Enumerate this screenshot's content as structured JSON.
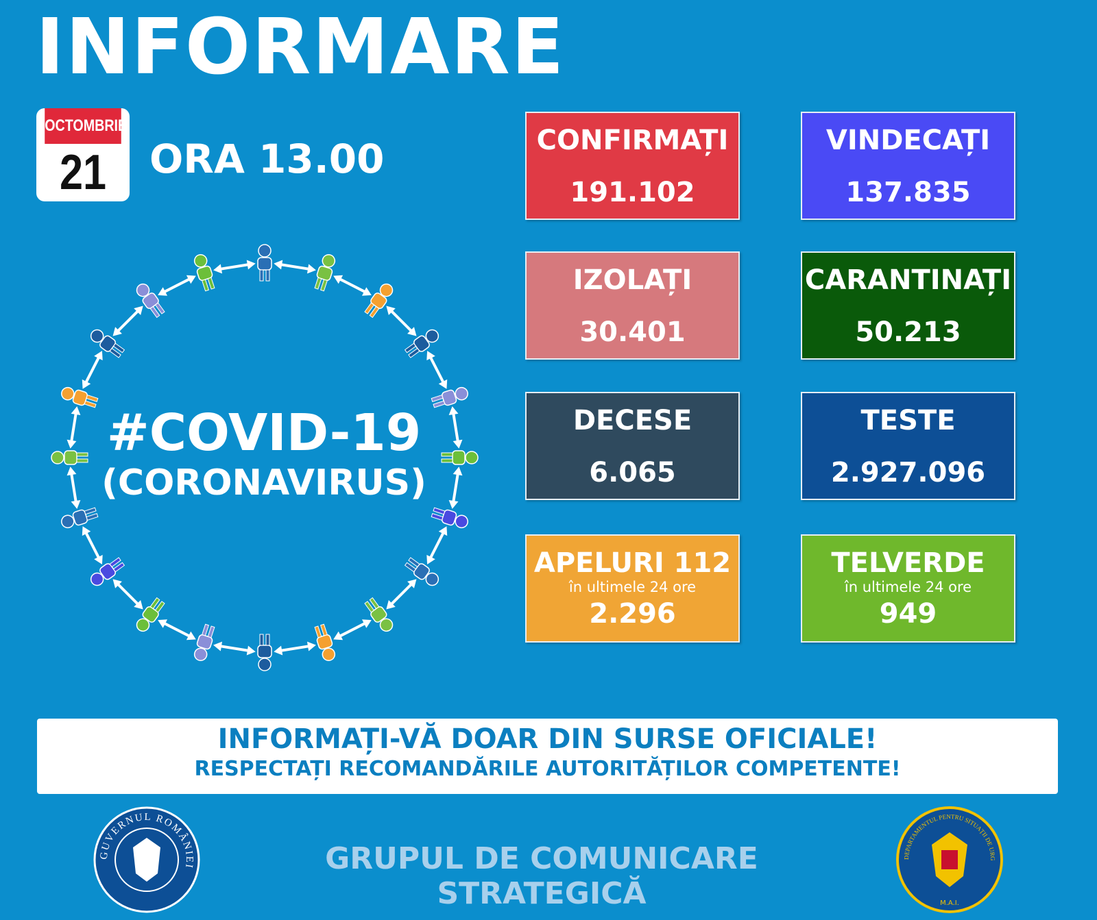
{
  "header": {
    "title": "INFORMARE",
    "month": "OCTOMBRIE",
    "day": "21",
    "time": "ORA 13.00"
  },
  "center": {
    "title": "#COVID-19",
    "subtitle": "(CORONAVIRUS)"
  },
  "cards": [
    {
      "label": "CONFIRMAȚI",
      "value": "191.102"
    },
    {
      "label": "VINDECAȚI",
      "value": "137.835"
    },
    {
      "label": "IZOLAȚI",
      "value": "30.401"
    },
    {
      "label": "CARANTINAȚI",
      "value": "50.213"
    },
    {
      "label": "DECESE",
      "value": "6.065"
    },
    {
      "label": "TESTE",
      "value": "2.927.096"
    },
    {
      "label": "APELURI 112",
      "note": "în ultimele 24 ore",
      "value": "2.296"
    },
    {
      "label": "TELVERDE",
      "note": "în ultimele 24 ore",
      "value": "949"
    }
  ],
  "banner": {
    "line1": "INFORMAȚI-VĂ DOAR DIN SURSE OFICIALE!",
    "line2": "RESPECTAȚI RECOMANDĂRILE AUTORITĂȚILOR COMPETENTE!"
  },
  "footer": {
    "org": "GRUPUL DE COMUNICARE STRATEGICĂ",
    "logo_left": "GUVERNUL ROMÂNIEI",
    "logo_right": "DEPARTAMENTUL PENTRU SITUAȚII DE URGENȚĂ",
    "logo_right_bottom": "M.A.I."
  }
}
